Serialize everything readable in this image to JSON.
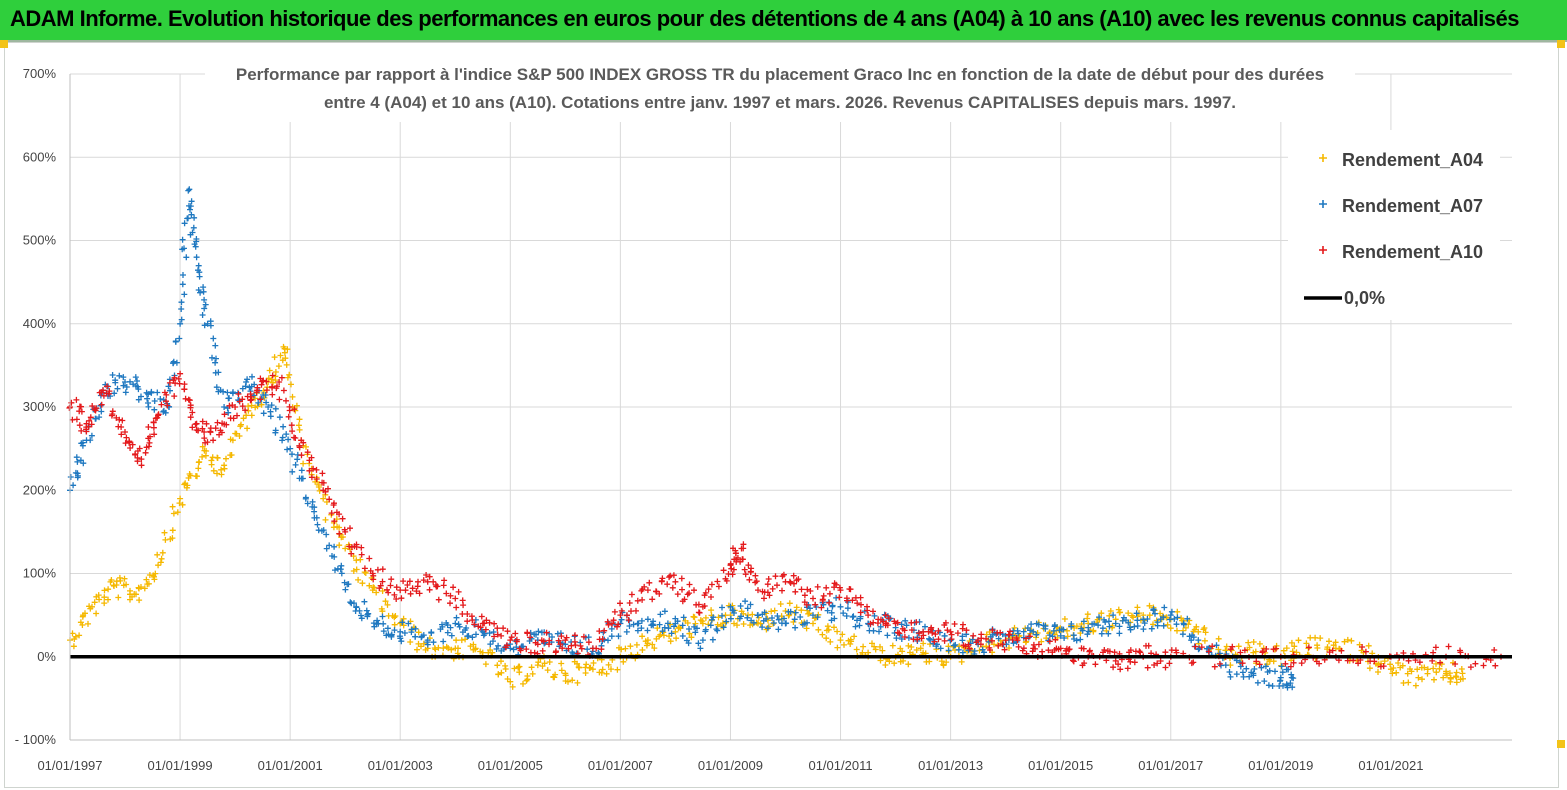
{
  "header": {
    "title": "ADAM Informe. Evolution historique des performances en euros pour des détentions de 4 ans (A04) à 10 ans (A10) avec les revenus connus capitalisés",
    "accent_color": "#2fcf3c"
  },
  "chart_data": {
    "type": "scatter",
    "title_lines": [
      "Performance par rapport à l'indice S&P 500 INDEX GROSS TR  du placement Graco Inc en fonction de la date de début pour des durées",
      "entre 4 (A04) et 10 ans (A10). Cotations entre janv. 1997 et mars. 2026. Revenus CAPITALISES depuis mars. 1997."
    ],
    "xlabel": "",
    "ylabel": "",
    "xlim": [
      1997.0,
      2023.2
    ],
    "ylim": [
      -100,
      700
    ],
    "grid": true,
    "legend_position": "top-right",
    "x_tick_labels": [
      "01/01/1997",
      "01/01/1999",
      "01/01/2001",
      "01/01/2003",
      "01/01/2005",
      "01/01/2007",
      "01/01/2009",
      "01/01/2011",
      "01/01/2013",
      "01/01/2015",
      "01/01/2017",
      "01/01/2019",
      "01/01/2021"
    ],
    "x_ticks": [
      1997,
      1999,
      2001,
      2003,
      2005,
      2007,
      2009,
      2011,
      2013,
      2015,
      2017,
      2019,
      2021
    ],
    "y_ticks": [
      -100,
      0,
      100,
      200,
      300,
      400,
      500,
      600,
      700
    ],
    "y_tick_labels": [
      "- 100%",
      "0%",
      "100%",
      "200%",
      "300%",
      "400%",
      "500%",
      "600%",
      "700%"
    ],
    "reference_line": {
      "name": "0,0%",
      "y": 0,
      "color": "#000000"
    },
    "series": [
      {
        "name": "Rendement_A04",
        "color": "#f5b800",
        "x": [
          1997.0,
          1997.4,
          1997.8,
          1998.2,
          1998.6,
          1999.0,
          1999.4,
          1999.8,
          2000.2,
          2000.6,
          2000.9,
          2001.2,
          2001.6,
          2002.0,
          2002.5,
          2003.0,
          2003.5,
          2004.0,
          2004.5,
          2005.0,
          2005.5,
          2006.0,
          2006.5,
          2007.0,
          2007.5,
          2008.0,
          2008.5,
          2009.0,
          2009.5,
          2010.0,
          2010.5,
          2011.0,
          2011.5,
          2012.0,
          2012.5,
          2013.0,
          2013.5,
          2014.0,
          2014.5,
          2015.0,
          2015.5,
          2016.0,
          2016.5,
          2017.0,
          2017.5,
          2018.0,
          2018.5,
          2019.0,
          2019.5,
          2020.0,
          2020.5,
          2021.0,
          2021.5,
          2022.0,
          2022.3
        ],
        "y": [
          20,
          60,
          85,
          75,
          110,
          190,
          240,
          230,
          290,
          330,
          370,
          260,
          190,
          130,
          80,
          40,
          10,
          10,
          5,
          -30,
          -10,
          -20,
          -15,
          0,
          20,
          30,
          40,
          50,
          40,
          55,
          40,
          20,
          5,
          0,
          5,
          0,
          15,
          20,
          30,
          30,
          40,
          45,
          50,
          45,
          30,
          0,
          5,
          0,
          10,
          10,
          5,
          -15,
          -25,
          -20,
          -20
        ]
      },
      {
        "name": "Rendement_A07",
        "color": "#1f78c0",
        "x": [
          1997.0,
          1997.3,
          1997.6,
          1998.0,
          1998.4,
          1998.8,
          1999.0,
          1999.15,
          1999.3,
          1999.5,
          1999.8,
          2000.2,
          2000.6,
          2001.0,
          2001.4,
          2001.8,
          2002.2,
          2002.6,
          2003.0,
          2003.5,
          2004.0,
          2004.5,
          2005.0,
          2005.5,
          2006.0,
          2006.5,
          2007.0,
          2007.5,
          2008.0,
          2008.5,
          2009.0,
          2009.5,
          2010.0,
          2010.5,
          2011.0,
          2011.5,
          2012.0,
          2012.5,
          2013.0,
          2013.5,
          2014.0,
          2014.5,
          2015.0,
          2015.5,
          2016.0,
          2016.5,
          2017.0,
          2017.5,
          2018.0,
          2018.5,
          2019.0,
          2019.2
        ],
        "y": [
          200,
          260,
          320,
          330,
          310,
          300,
          400,
          560,
          480,
          400,
          300,
          330,
          300,
          250,
          180,
          120,
          60,
          40,
          30,
          20,
          40,
          30,
          10,
          20,
          15,
          10,
          40,
          45,
          40,
          20,
          60,
          50,
          40,
          50,
          60,
          40,
          35,
          30,
          20,
          15,
          25,
          30,
          25,
          35,
          40,
          45,
          50,
          20,
          -10,
          -20,
          -25,
          -25
        ]
      },
      {
        "name": "Rendement_A10",
        "color": "#e41a1c",
        "x": [
          1997.0,
          1997.3,
          1997.6,
          1998.0,
          1998.3,
          1998.6,
          1999.0,
          1999.3,
          1999.6,
          2000.0,
          2000.4,
          2000.8,
          2001.2,
          2001.6,
          2002.0,
          2002.5,
          2003.0,
          2003.5,
          2004.0,
          2004.5,
          2005.0,
          2005.5,
          2006.0,
          2006.5,
          2007.0,
          2007.5,
          2008.0,
          2008.5,
          2009.0,
          2009.2,
          2009.5,
          2010.0,
          2010.5,
          2011.0,
          2011.5,
          2012.0,
          2012.5,
          2013.0,
          2013.5,
          2014.0,
          2014.5,
          2015.0,
          2015.5,
          2016.0,
          2016.5,
          2017.0,
          2018.0,
          2019.0,
          2020.0,
          2021.0,
          2022.0,
          2023.0
        ],
        "y": [
          300,
          280,
          320,
          270,
          230,
          290,
          340,
          280,
          260,
          300,
          320,
          330,
          260,
          200,
          150,
          100,
          80,
          90,
          70,
          40,
          20,
          15,
          20,
          10,
          50,
          80,
          90,
          60,
          110,
          130,
          80,
          90,
          70,
          80,
          50,
          40,
          30,
          30,
          20,
          20,
          10,
          10,
          0,
          -5,
          0,
          0,
          0,
          0,
          0,
          0,
          0,
          0
        ]
      }
    ]
  }
}
